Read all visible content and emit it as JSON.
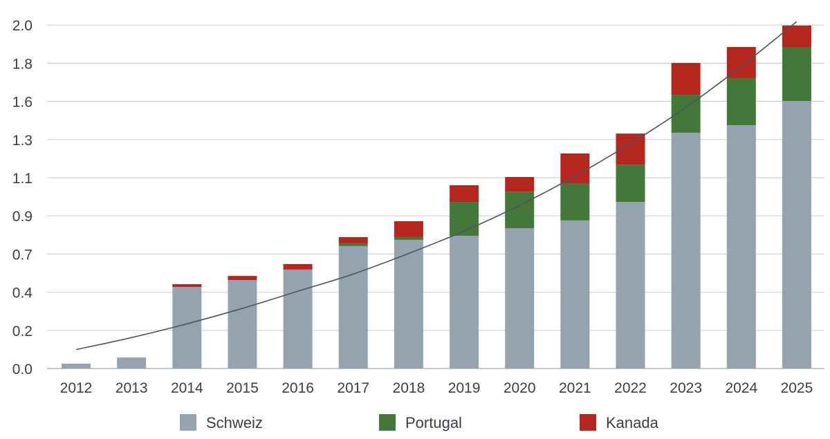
{
  "chart_data": {
    "type": "bar",
    "stacked": true,
    "categories": [
      "2012",
      "2013",
      "2014",
      "2015",
      "2016",
      "2017",
      "2018",
      "2019",
      "2020",
      "2021",
      "2022",
      "2023",
      "2024",
      "2025"
    ],
    "series": [
      {
        "name": "Schweiz",
        "color": "#94a3b0",
        "values": [
          0.028,
          0.064,
          0.475,
          0.515,
          0.576,
          0.713,
          0.749,
          0.773,
          0.817,
          0.862,
          0.97,
          1.373,
          1.417,
          1.558
        ]
      },
      {
        "name": "Portugal",
        "color": "#44783a",
        "values": [
          0,
          0,
          0,
          0,
          0,
          0.016,
          0.016,
          0.197,
          0.213,
          0.217,
          0.217,
          0.221,
          0.274,
          0.314
        ]
      },
      {
        "name": "Kanada",
        "color": "#b5261e",
        "values": [
          0,
          0,
          0.016,
          0.024,
          0.032,
          0.036,
          0.093,
          0.097,
          0.085,
          0.173,
          0.181,
          0.185,
          0.181,
          0.125
        ]
      }
    ],
    "trendline": {
      "color": "#4a5560",
      "values": [
        0.11,
        0.18,
        0.26,
        0.35,
        0.45,
        0.55,
        0.67,
        0.8,
        0.95,
        1.12,
        1.31,
        1.52,
        1.76,
        2.02
      ]
    },
    "ylim": [
      0,
      2.0
    ],
    "yticks": [
      0,
      0.222,
      0.444,
      0.667,
      0.889,
      1.111,
      1.333,
      1.556,
      1.778,
      2.0
    ],
    "ytick_labels": [
      "0.0",
      "0.2",
      "0.4",
      "0.7",
      "0.9",
      "1.1",
      "1.3",
      "1.6",
      "1.8",
      "2.0"
    ],
    "grid": true,
    "legend_position": "bottom"
  }
}
